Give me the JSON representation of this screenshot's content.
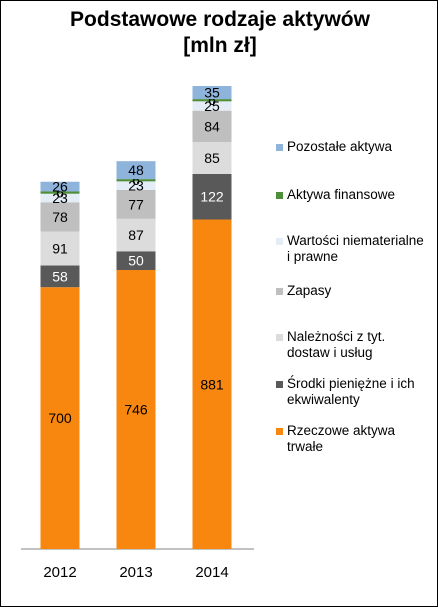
{
  "chart_data": {
    "type": "bar",
    "stacked": true,
    "title_lines": [
      "Podstawowe rodzaje aktywów",
      "[mln zł]"
    ],
    "categories": [
      "2012",
      "2013",
      "2014"
    ],
    "series": [
      {
        "name": "Rzeczowe aktywa trwałe",
        "color": "#f7870f",
        "label_color": "#000000",
        "values": [
          700,
          746,
          881
        ]
      },
      {
        "name": "Środki pieniężne i ich ekwiwalenty",
        "color": "#595959",
        "label_color": "#ffffff",
        "values": [
          58,
          50,
          122
        ]
      },
      {
        "name": "Należności z tyt. dostaw i usług",
        "color": "#dcdcdc",
        "label_color": "#000000",
        "values": [
          91,
          87,
          85
        ]
      },
      {
        "name": "Zapasy",
        "color": "#bfbfbf",
        "label_color": "#000000",
        "values": [
          78,
          77,
          84
        ]
      },
      {
        "name": "Wartości niematerialne i prawne",
        "color": "#e4ecf6",
        "label_color": "#000000",
        "values": [
          23,
          23,
          25
        ]
      },
      {
        "name": "Aktywa finansowe",
        "color": "#4f8f3a",
        "label_color": "#000000",
        "values": [
          6,
          6,
          6
        ]
      },
      {
        "name": "Pozostałe aktywa",
        "color": "#8eb4dc",
        "label_color": "#000000",
        "values": [
          26,
          48,
          35
        ]
      }
    ],
    "legend_order": [
      6,
      5,
      4,
      3,
      2,
      1,
      0
    ],
    "legend_labels": [
      "Pozostałe aktywa",
      "Aktywa finansowe",
      "Wartości niematerialne i prawne",
      "Zapasy",
      "Należności z tyt. dostaw i usług",
      "Środki pieniężne i ich ekwiwalenty",
      "Rzeczowe aktywa trwałe"
    ],
    "data_labels_shown": [
      [
        "700",
        "746",
        "881"
      ],
      [
        "58",
        "50",
        "122"
      ],
      [
        "91",
        "87",
        "85"
      ],
      [
        "78",
        "77",
        "84"
      ],
      [
        "23",
        "23",
        "25"
      ],
      [
        "6",
        "6",
        "6"
      ],
      [
        "26",
        "48",
        "35"
      ]
    ],
    "ylim": [
      0,
      1238
    ],
    "xlabel": "",
    "ylabel": "",
    "grid": false,
    "legend_position": "right"
  }
}
